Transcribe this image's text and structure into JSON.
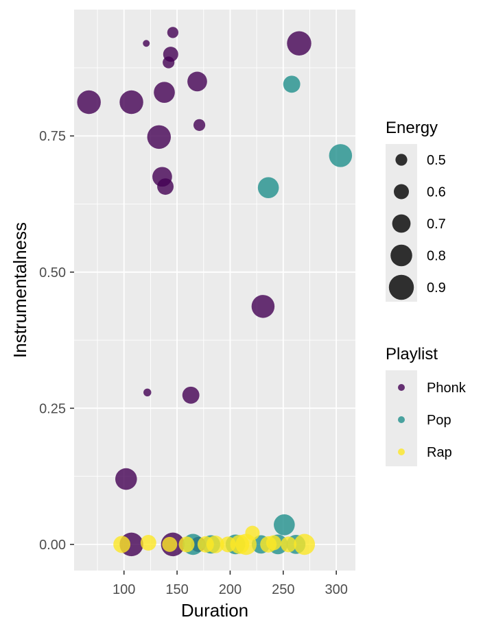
{
  "chart_data": {
    "type": "scatter",
    "xlabel": "Duration",
    "ylabel": "Instrumentalness",
    "xlim": [
      53,
      318
    ],
    "ylim": [
      -0.048,
      0.982
    ],
    "x_ticks": [
      100,
      150,
      200,
      250,
      300
    ],
    "x_tick_labels": [
      "100",
      "150",
      "200",
      "250",
      "300"
    ],
    "y_ticks": [
      0,
      0.25,
      0.5,
      0.75
    ],
    "y_tick_labels": [
      "0.00",
      "0.25",
      "0.50",
      "0.75"
    ],
    "grid": true,
    "legend_position": "right",
    "size_legend": {
      "title": "Energy",
      "values": [
        0.5,
        0.6,
        0.7,
        0.8,
        0.9
      ],
      "labels": [
        "0.5",
        "0.6",
        "0.7",
        "0.8",
        "0.9"
      ]
    },
    "color_legend": {
      "title": "Playlist",
      "entries": [
        {
          "name": "Phonk",
          "color": "#440154"
        },
        {
          "name": "Pop",
          "color": "#21908C"
        },
        {
          "name": "Rap",
          "color": "#FDE725"
        }
      ]
    },
    "series": [
      {
        "name": "Phonk",
        "color": "#440154",
        "points": [
          {
            "x": 121,
            "y": 0.92,
            "energy": 0.35
          },
          {
            "x": 146,
            "y": 0.94,
            "energy": 0.48
          },
          {
            "x": 265,
            "y": 0.92,
            "energy": 0.88
          },
          {
            "x": 144,
            "y": 0.9,
            "energy": 0.6
          },
          {
            "x": 142,
            "y": 0.885,
            "energy": 0.5
          },
          {
            "x": 169,
            "y": 0.85,
            "energy": 0.74
          },
          {
            "x": 138,
            "y": 0.83,
            "energy": 0.78
          },
          {
            "x": 67,
            "y": 0.812,
            "energy": 0.86
          },
          {
            "x": 107,
            "y": 0.812,
            "energy": 0.86
          },
          {
            "x": 171,
            "y": 0.77,
            "energy": 0.5
          },
          {
            "x": 133,
            "y": 0.748,
            "energy": 0.86
          },
          {
            "x": 136,
            "y": 0.675,
            "energy": 0.74
          },
          {
            "x": 139,
            "y": 0.657,
            "energy": 0.64
          },
          {
            "x": 231,
            "y": 0.437,
            "energy": 0.84
          },
          {
            "x": 122,
            "y": 0.279,
            "energy": 0.38
          },
          {
            "x": 163,
            "y": 0.274,
            "energy": 0.66
          },
          {
            "x": 102,
            "y": 0.12,
            "energy": 0.8
          },
          {
            "x": 107,
            "y": 0.0,
            "energy": 0.86
          },
          {
            "x": 146,
            "y": 0.0,
            "energy": 0.86
          },
          {
            "x": 170,
            "y": 0.0,
            "energy": 0.6
          }
        ]
      },
      {
        "name": "Pop",
        "color": "#21908C",
        "points": [
          {
            "x": 258,
            "y": 0.845,
            "energy": 0.66
          },
          {
            "x": 304,
            "y": 0.714,
            "energy": 0.84
          },
          {
            "x": 236,
            "y": 0.655,
            "energy": 0.78
          },
          {
            "x": 251,
            "y": 0.036,
            "energy": 0.78
          },
          {
            "x": 165,
            "y": 0.0,
            "energy": 0.78
          },
          {
            "x": 182,
            "y": 0.0,
            "energy": 0.7
          },
          {
            "x": 205,
            "y": 0.0,
            "energy": 0.74
          },
          {
            "x": 229,
            "y": 0.0,
            "energy": 0.7
          },
          {
            "x": 245,
            "y": 0.0,
            "energy": 0.74
          },
          {
            "x": 262,
            "y": 0.0,
            "energy": 0.72
          }
        ]
      },
      {
        "name": "Rap",
        "color": "#FDE725",
        "points": [
          {
            "x": 98,
            "y": 0.0,
            "energy": 0.66
          },
          {
            "x": 123,
            "y": 0.003,
            "energy": 0.62
          },
          {
            "x": 143,
            "y": 0.0,
            "energy": 0.6
          },
          {
            "x": 159,
            "y": 0.0,
            "energy": 0.62
          },
          {
            "x": 177,
            "y": 0.0,
            "energy": 0.64
          },
          {
            "x": 186,
            "y": 0.0,
            "energy": 0.68
          },
          {
            "x": 198,
            "y": 0.0,
            "energy": 0.62
          },
          {
            "x": 209,
            "y": 0.0,
            "energy": 0.72
          },
          {
            "x": 215,
            "y": 0.0,
            "energy": 0.78
          },
          {
            "x": 221,
            "y": 0.021,
            "energy": 0.58
          },
          {
            "x": 236,
            "y": 0.0,
            "energy": 0.64
          },
          {
            "x": 241,
            "y": 0.003,
            "energy": 0.6
          },
          {
            "x": 255,
            "y": 0.0,
            "energy": 0.62
          },
          {
            "x": 270,
            "y": 0.0,
            "energy": 0.78
          }
        ]
      }
    ]
  }
}
